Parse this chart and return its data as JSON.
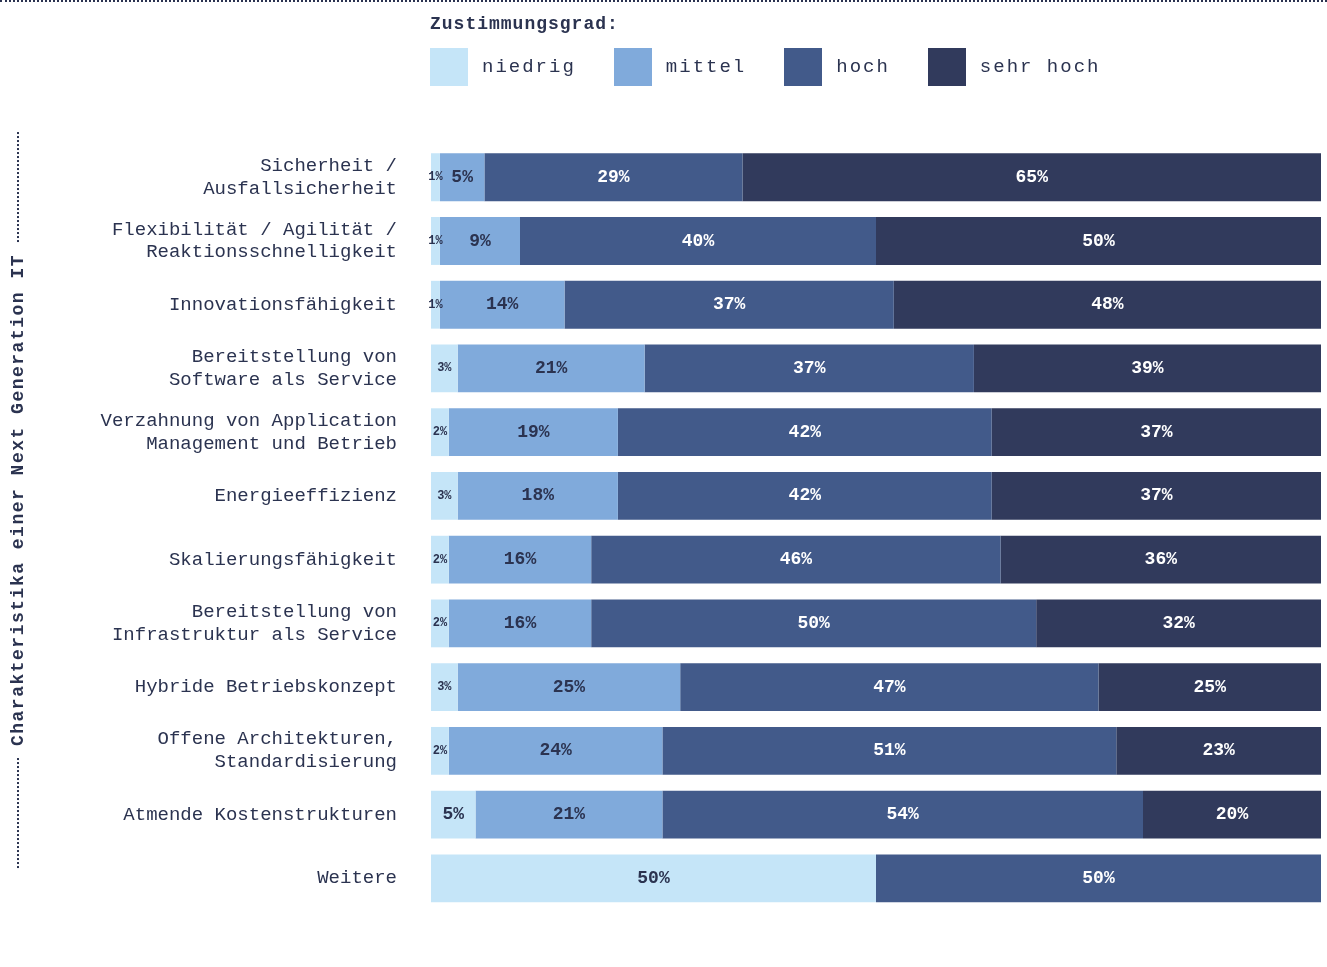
{
  "chart_data": {
    "type": "bar",
    "orientation": "horizontal",
    "stacked": true,
    "legend": "top",
    "legend_title": "Zustimmungsgrad:",
    "ylabel": "Charakteristika einer Next Generation IT",
    "xlim": [
      0,
      100
    ],
    "tick_labels": "y",
    "grid": false,
    "categories": [
      "Sicherheit / Ausfallsicherheit",
      "Flexibilität / Agilität / Reaktionsschnelligkeit",
      "Innovationsfähigkeit",
      "Bereitstellung von Software als Service",
      "Verzahnung von Application Management und Betrieb",
      "Energieeffizienz",
      "Skalierungsfähigkeit",
      "Bereitstellung von Infrastruktur als Service",
      "Hybride Betriebskonzept",
      "Offene Architekturen, Standardisierung",
      "Atmende Kostenstrukturen",
      "Weitere"
    ],
    "series": [
      {
        "name": "niedrig",
        "color": "#c5e5f8",
        "values": [
          1,
          1,
          1,
          3,
          2,
          3,
          2,
          2,
          3,
          2,
          5,
          50
        ],
        "value_labels": [
          "1%",
          "1%",
          "1%",
          "3%",
          "2%",
          "3%",
          "2%",
          "2%",
          "3%",
          "2%",
          "5%",
          "50%"
        ]
      },
      {
        "name": "mittel",
        "color": "#80aadb",
        "values": [
          5,
          9,
          14,
          21,
          19,
          18,
          16,
          16,
          25,
          24,
          21,
          null
        ],
        "value_labels": [
          "5%",
          "9%",
          "14%",
          "21%",
          "19%",
          "18%",
          "16%",
          "16%",
          "25%",
          "24%",
          "21%",
          null
        ]
      },
      {
        "name": "hoch",
        "color": "#425a8a",
        "values": [
          29,
          40,
          37,
          37,
          42,
          42,
          46,
          50,
          47,
          51,
          54,
          50
        ],
        "value_labels": [
          "29%",
          "40%",
          "37%",
          "37%",
          "42%",
          "42%",
          "46%",
          "50%",
          "47%",
          "51%",
          "54%",
          "50%"
        ]
      },
      {
        "name": "sehr hoch",
        "color": "#313a5c",
        "values": [
          65,
          50,
          48,
          39,
          37,
          37,
          36,
          32,
          25,
          23,
          20,
          null
        ],
        "value_labels": [
          "65%",
          "50%",
          "48%",
          "39%",
          "37%",
          "37%",
          "36%",
          "32%",
          "25%",
          "23%",
          "20%",
          null
        ]
      }
    ]
  }
}
